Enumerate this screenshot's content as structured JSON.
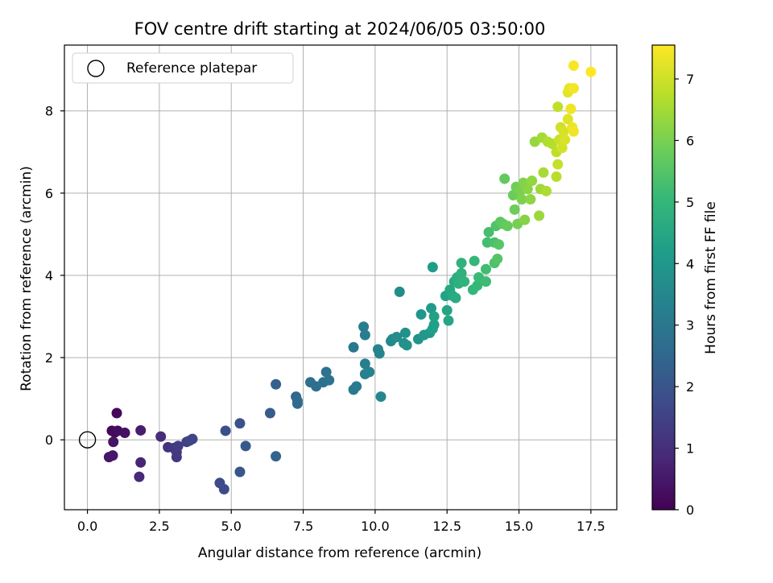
{
  "chart_data": {
    "type": "scatter",
    "title": "FOV centre drift starting at 2024/06/05 03:50:00",
    "xlabel": "Angular distance from reference (arcmin)",
    "ylabel": "Rotation from reference (arcmin)",
    "colorbar_label": "Hours from first FF file",
    "xlim": [
      -0.8,
      18.4
    ],
    "ylim": [
      -1.7,
      9.6
    ],
    "xticks": [
      "0.0",
      "2.5",
      "5.0",
      "7.5",
      "10.0",
      "12.5",
      "15.0",
      "17.5"
    ],
    "yticks": [
      "0",
      "2",
      "4",
      "6",
      "8"
    ],
    "colorbar_ticks": [
      "0",
      "1",
      "2",
      "3",
      "4",
      "5",
      "6",
      "7"
    ],
    "colorbar_range": [
      0,
      7.55
    ],
    "colormap": [
      "#440154",
      "#482878",
      "#3e4989",
      "#31688e",
      "#26828e",
      "#1f9e89",
      "#35b779",
      "#6ece58",
      "#b5de2b",
      "#fde725"
    ],
    "grid": true,
    "legend": {
      "placement": "top-left",
      "entries": [
        {
          "label": "Reference platepar",
          "marker": "open-circle"
        }
      ]
    },
    "reference_point": {
      "x": 0.0,
      "y": 0.0
    },
    "points": [
      [
        1.02,
        0.65,
        0.15
      ],
      [
        0.85,
        0.22,
        0.12
      ],
      [
        0.95,
        0.18,
        0.2
      ],
      [
        1.05,
        0.22,
        0.25
      ],
      [
        1.3,
        0.17,
        0.3
      ],
      [
        0.9,
        -0.05,
        0.4
      ],
      [
        0.75,
        -0.42,
        0.45
      ],
      [
        0.88,
        -0.38,
        0.5
      ],
      [
        1.85,
        0.23,
        0.6
      ],
      [
        1.85,
        -0.55,
        0.8
      ],
      [
        1.8,
        -0.9,
        0.9
      ],
      [
        2.55,
        0.08,
        1.0
      ],
      [
        2.8,
        -0.18,
        1.1
      ],
      [
        3.0,
        -0.2,
        1.2
      ],
      [
        3.1,
        -0.42,
        1.25
      ],
      [
        3.1,
        -0.3,
        1.3
      ],
      [
        3.15,
        -0.15,
        1.35
      ],
      [
        3.45,
        -0.05,
        1.45
      ],
      [
        3.55,
        -0.02,
        1.55
      ],
      [
        3.65,
        0.02,
        1.6
      ],
      [
        4.6,
        -1.05,
        1.7
      ],
      [
        4.75,
        -1.2,
        1.75
      ],
      [
        4.8,
        0.22,
        1.85
      ],
      [
        5.3,
        0.4,
        1.95
      ],
      [
        5.3,
        -0.78,
        2.0
      ],
      [
        5.5,
        -0.15,
        2.1
      ],
      [
        6.35,
        0.65,
        2.2
      ],
      [
        6.55,
        1.35,
        2.3
      ],
      [
        6.55,
        -0.4,
        2.4
      ],
      [
        7.25,
        1.05,
        2.5
      ],
      [
        7.3,
        0.88,
        2.55
      ],
      [
        7.3,
        0.95,
        2.6
      ],
      [
        7.75,
        1.4,
        2.7
      ],
      [
        7.95,
        1.3,
        2.75
      ],
      [
        8.2,
        1.4,
        2.8
      ],
      [
        8.3,
        1.65,
        2.85
      ],
      [
        8.4,
        1.45,
        2.9
      ],
      [
        9.25,
        2.25,
        3.0
      ],
      [
        9.25,
        1.22,
        3.05
      ],
      [
        9.35,
        1.3,
        3.1
      ],
      [
        9.6,
        2.75,
        3.15
      ],
      [
        9.65,
        2.55,
        3.2
      ],
      [
        9.65,
        1.85,
        3.25
      ],
      [
        9.65,
        1.6,
        3.3
      ],
      [
        9.8,
        1.65,
        3.35
      ],
      [
        10.1,
        2.2,
        3.4
      ],
      [
        10.15,
        2.1,
        3.45
      ],
      [
        10.2,
        1.05,
        3.5
      ],
      [
        10.55,
        2.4,
        3.55
      ],
      [
        10.6,
        2.45,
        3.6
      ],
      [
        10.75,
        2.5,
        3.65
      ],
      [
        10.85,
        3.6,
        3.7
      ],
      [
        11.0,
        2.35,
        3.75
      ],
      [
        11.05,
        2.6,
        3.8
      ],
      [
        11.1,
        2.3,
        3.85
      ],
      [
        11.5,
        2.45,
        3.9
      ],
      [
        11.6,
        3.05,
        3.95
      ],
      [
        11.7,
        2.55,
        4.0
      ],
      [
        11.9,
        2.6,
        4.05
      ],
      [
        11.95,
        3.2,
        4.1
      ],
      [
        12.0,
        4.2,
        4.15
      ],
      [
        12.0,
        2.7,
        4.2
      ],
      [
        12.05,
        2.8,
        4.25
      ],
      [
        12.05,
        3.0,
        4.3
      ],
      [
        12.45,
        3.5,
        4.35
      ],
      [
        12.5,
        3.15,
        4.4
      ],
      [
        12.55,
        2.9,
        4.45
      ],
      [
        12.6,
        3.65,
        4.5
      ],
      [
        12.7,
        3.5,
        4.55
      ],
      [
        12.75,
        3.85,
        4.6
      ],
      [
        12.8,
        3.45,
        4.65
      ],
      [
        12.85,
        3.95,
        4.7
      ],
      [
        12.9,
        3.8,
        4.75
      ],
      [
        13.0,
        4.05,
        4.8
      ],
      [
        13.0,
        4.3,
        4.85
      ],
      [
        13.1,
        3.85,
        4.9
      ],
      [
        13.4,
        3.65,
        4.95
      ],
      [
        13.45,
        4.35,
        5.0
      ],
      [
        13.55,
        3.75,
        5.05
      ],
      [
        13.6,
        3.95,
        5.1
      ],
      [
        13.85,
        3.85,
        5.15
      ],
      [
        13.85,
        4.15,
        5.2
      ],
      [
        13.9,
        4.8,
        5.25
      ],
      [
        13.95,
        5.05,
        5.3
      ],
      [
        14.15,
        4.8,
        5.35
      ],
      [
        14.15,
        4.3,
        5.4
      ],
      [
        14.2,
        5.2,
        5.45
      ],
      [
        14.25,
        4.4,
        5.5
      ],
      [
        14.3,
        4.75,
        5.55
      ],
      [
        14.35,
        5.3,
        5.6
      ],
      [
        14.45,
        5.25,
        5.65
      ],
      [
        14.5,
        6.35,
        5.7
      ],
      [
        14.6,
        5.2,
        5.75
      ],
      [
        14.8,
        5.95,
        5.8
      ],
      [
        14.85,
        5.6,
        5.85
      ],
      [
        14.9,
        6.15,
        5.9
      ],
      [
        14.95,
        5.25,
        5.95
      ],
      [
        15.05,
        6.05,
        6.0
      ],
      [
        15.1,
        5.85,
        6.05
      ],
      [
        15.15,
        6.25,
        6.1
      ],
      [
        15.2,
        5.35,
        6.15
      ],
      [
        15.3,
        6.1,
        6.2
      ],
      [
        15.4,
        5.85,
        6.25
      ],
      [
        15.45,
        6.3,
        6.3
      ],
      [
        15.55,
        7.25,
        6.35
      ],
      [
        15.7,
        5.45,
        6.4
      ],
      [
        15.75,
        6.1,
        6.45
      ],
      [
        15.8,
        7.35,
        6.5
      ],
      [
        15.85,
        6.5,
        6.55
      ],
      [
        15.95,
        6.05,
        6.6
      ],
      [
        16.0,
        7.25,
        6.65
      ],
      [
        16.15,
        7.2,
        6.7
      ],
      [
        16.3,
        6.4,
        6.75
      ],
      [
        16.3,
        7.0,
        6.8
      ],
      [
        16.35,
        8.1,
        6.85
      ],
      [
        16.35,
        6.7,
        6.9
      ],
      [
        16.4,
        7.3,
        6.95
      ],
      [
        16.45,
        7.6,
        7.0
      ],
      [
        16.5,
        7.1,
        7.05
      ],
      [
        16.55,
        7.5,
        7.1
      ],
      [
        16.6,
        7.3,
        7.15
      ],
      [
        16.7,
        7.8,
        7.2
      ],
      [
        16.7,
        8.45,
        7.25
      ],
      [
        16.75,
        8.55,
        7.3
      ],
      [
        16.85,
        7.6,
        7.35
      ],
      [
        16.8,
        8.05,
        7.38
      ],
      [
        16.9,
        7.5,
        7.4
      ],
      [
        16.9,
        8.55,
        7.42
      ],
      [
        16.9,
        9.1,
        7.48
      ],
      [
        17.5,
        8.95,
        7.55
      ]
    ]
  }
}
